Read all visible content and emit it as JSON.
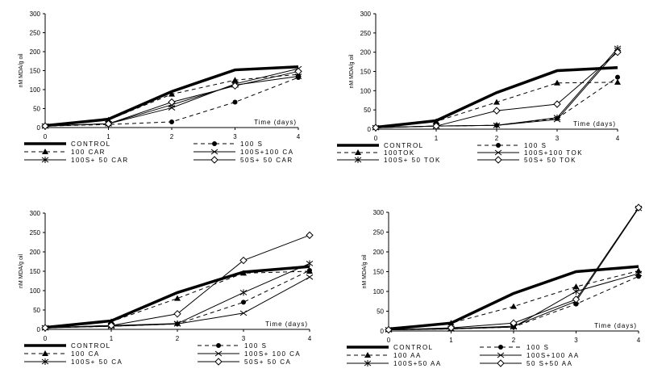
{
  "chart_data": [
    {
      "type": "line",
      "ylabel": "nM MDA/g oil",
      "xlabel": "Time (days)",
      "x": [
        0,
        1,
        2,
        3,
        4
      ],
      "ylim": [
        0,
        300
      ],
      "yticks": [
        "0",
        "50",
        "100",
        "150",
        "200",
        "250",
        "300"
      ],
      "xticks": [
        "0",
        "1",
        "2",
        "3",
        "4"
      ],
      "series": [
        {
          "name": "CONTROL",
          "style": "control",
          "values": [
            5,
            22,
            95,
            152,
            160
          ]
        },
        {
          "name": "100 S",
          "style": "dash-circle",
          "values": [
            4,
            8,
            15,
            67,
            132
          ]
        },
        {
          "name": "100 CAR",
          "style": "dash-triangle",
          "values": [
            5,
            20,
            88,
            125,
            140
          ]
        },
        {
          "name": "100S+100 CA",
          "style": "x",
          "values": [
            4,
            10,
            52,
            115,
            155
          ]
        },
        {
          "name": "100S+ 50 CAR",
          "style": "star",
          "values": [
            4,
            10,
            60,
            112,
            135
          ]
        },
        {
          "name": "50S+ 50 CAR",
          "style": "diamond",
          "values": [
            4,
            10,
            67,
            110,
            148
          ]
        }
      ]
    },
    {
      "type": "line",
      "ylabel": "nM MDA/g oil",
      "xlabel": "Time (days)",
      "x": [
        0,
        1,
        2,
        3,
        4
      ],
      "ylim": [
        0,
        300
      ],
      "yticks": [
        "0",
        "50",
        "100",
        "150",
        "200",
        "250",
        "300"
      ],
      "xticks": [
        "0",
        "1",
        "2",
        "3",
        "4"
      ],
      "series": [
        {
          "name": "CONTROL",
          "style": "control",
          "values": [
            5,
            22,
            95,
            152,
            160
          ]
        },
        {
          "name": "100 S",
          "style": "dash-circle",
          "values": [
            4,
            8,
            10,
            28,
            135
          ]
        },
        {
          "name": "100TOK",
          "style": "dash-triangle",
          "values": [
            5,
            20,
            70,
            120,
            122
          ]
        },
        {
          "name": "100S+100 TOK",
          "style": "x",
          "values": [
            4,
            8,
            10,
            25,
            205
          ]
        },
        {
          "name": "100S+ 50 TOK",
          "style": "star",
          "values": [
            4,
            8,
            10,
            30,
            210
          ]
        },
        {
          "name": "50S+ 50 TOK",
          "style": "diamond",
          "values": [
            4,
            8,
            48,
            65,
            200
          ]
        }
      ]
    },
    {
      "type": "line",
      "ylabel": "nM MDA/g oil",
      "xlabel": "Time (days)",
      "x": [
        0,
        1,
        2,
        3,
        4
      ],
      "ylim": [
        0,
        300
      ],
      "yticks": [
        "0",
        "50",
        "100",
        "150",
        "200",
        "250",
        "300"
      ],
      "xticks": [
        "0",
        "1",
        "2",
        "3",
        "4"
      ],
      "series": [
        {
          "name": "CONTROL",
          "style": "control",
          "values": [
            5,
            22,
            95,
            148,
            162
          ]
        },
        {
          "name": "100 S",
          "style": "dash-circle",
          "values": [
            4,
            8,
            14,
            70,
            152
          ]
        },
        {
          "name": "100 CA",
          "style": "dash-triangle",
          "values": [
            5,
            20,
            80,
            145,
            150
          ]
        },
        {
          "name": "100S+ 100 CA",
          "style": "x",
          "values": [
            4,
            8,
            14,
            42,
            135
          ]
        },
        {
          "name": "100S+ 50 CA",
          "style": "star",
          "values": [
            4,
            10,
            15,
            95,
            170
          ]
        },
        {
          "name": "50S+ 50 CA",
          "style": "diamond",
          "values": [
            4,
            10,
            40,
            178,
            243
          ]
        }
      ]
    },
    {
      "type": "line",
      "ylabel": "nM MDA/g oil",
      "xlabel": "Time (days)",
      "x": [
        0,
        1,
        2,
        3,
        4
      ],
      "ylim": [
        0,
        300
      ],
      "yticks": [
        "0",
        "50",
        "100",
        "150",
        "200",
        "250",
        "300"
      ],
      "xticks": [
        "0",
        "1",
        "2",
        "3",
        "4"
      ],
      "series": [
        {
          "name": "CONTROL",
          "style": "control",
          "values": [
            5,
            20,
            95,
            150,
            163
          ]
        },
        {
          "name": "100 S",
          "style": "dash-circle",
          "values": [
            3,
            5,
            10,
            68,
            138
          ]
        },
        {
          "name": "100 AA",
          "style": "dash-triangle",
          "values": [
            5,
            20,
            62,
            112,
            152
          ]
        },
        {
          "name": "100S+100 AA",
          "style": "x",
          "values": [
            3,
            6,
            12,
            75,
            310
          ]
        },
        {
          "name": "100S+50 AA",
          "style": "star",
          "values": [
            3,
            5,
            10,
            100,
            145
          ]
        },
        {
          "name": "50 S+50 AA",
          "style": "diamond",
          "values": [
            3,
            8,
            20,
            80,
            312
          ]
        }
      ]
    }
  ]
}
